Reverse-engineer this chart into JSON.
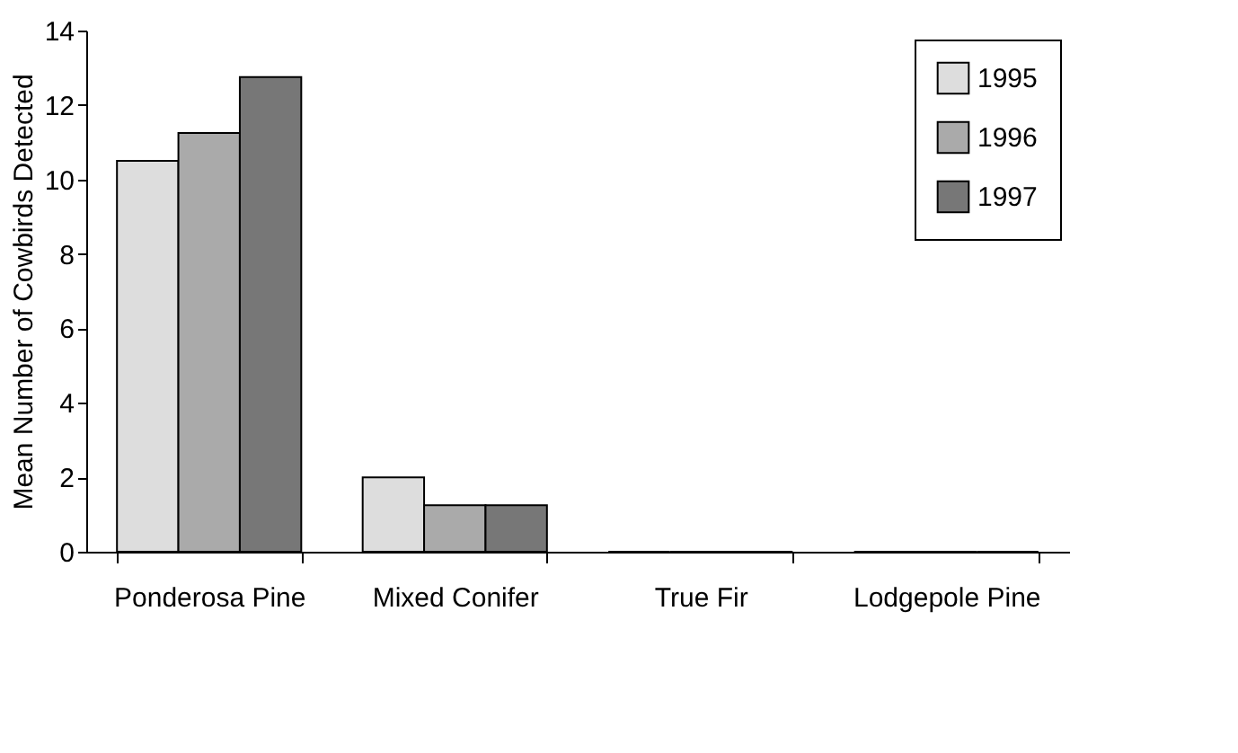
{
  "chart_data": {
    "type": "bar",
    "ylabel": "Mean Number of Cowbirds Detected",
    "categories": [
      "Ponderosa Pine",
      "Mixed Conifer",
      "True Fir",
      "Lodgepole Pine"
    ],
    "series": [
      {
        "name": "1995",
        "color": "#dddddd",
        "values": [
          10.5,
          2.0,
          0,
          0
        ]
      },
      {
        "name": "1996",
        "color": "#aaaaaa",
        "values": [
          11.25,
          1.25,
          0,
          0
        ]
      },
      {
        "name": "1997",
        "color": "#777777",
        "values": [
          12.75,
          1.25,
          0,
          0
        ]
      }
    ],
    "ylim": [
      0,
      14
    ],
    "yticks": [
      0,
      2,
      4,
      6,
      8,
      10,
      12,
      14
    ],
    "grid": false,
    "legend": "top right"
  }
}
